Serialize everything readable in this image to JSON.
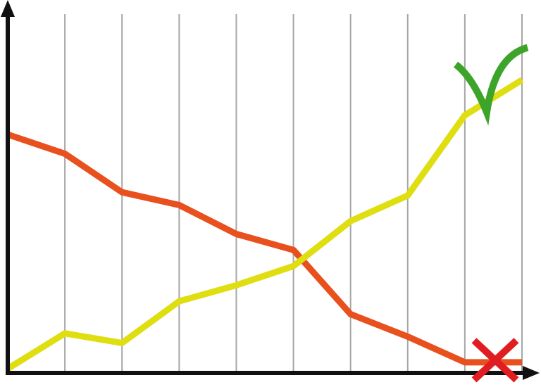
{
  "chart_data": {
    "type": "line",
    "title": "",
    "xlabel": "",
    "ylabel": "",
    "x": [
      0,
      1,
      2,
      3,
      4,
      5,
      6,
      7,
      8,
      9
    ],
    "xlim": [
      0,
      9
    ],
    "ylim": [
      0,
      100
    ],
    "grid": {
      "vertical": true,
      "horizontal": false,
      "color": "#a6a6a6"
    },
    "legend": "none",
    "series": [
      {
        "color": "#e8501e",
        "values": [
          73,
          67,
          55,
          51,
          42,
          37,
          17,
          10,
          2,
          2
        ],
        "end_marker": "cross-icon",
        "end_marker_color": "#e01e22"
      },
      {
        "color": "#dede10",
        "values": [
          0,
          11,
          8,
          21,
          26,
          32,
          46,
          54,
          79,
          90
        ],
        "end_marker": "checkmark-icon",
        "end_marker_color": "#3da42a"
      }
    ]
  }
}
